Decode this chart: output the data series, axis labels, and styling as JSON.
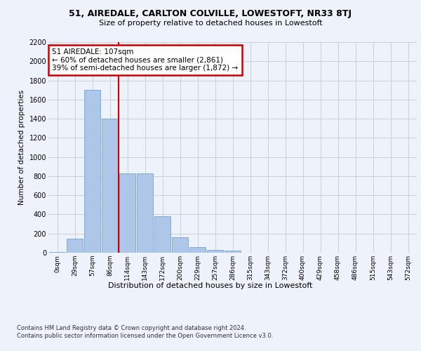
{
  "title_line1": "51, AIREDALE, CARLTON COLVILLE, LOWESTOFT, NR33 8TJ",
  "title_line2": "Size of property relative to detached houses in Lowestoft",
  "xlabel": "Distribution of detached houses by size in Lowestoft",
  "ylabel": "Number of detached properties",
  "bar_color": "#aec6e8",
  "bar_edge_color": "#5b9bd5",
  "grid_color": "#c8d0e0",
  "annotation_box_color": "#cc0000",
  "vline_color": "#cc0000",
  "annotation_text_line1": "51 AIREDALE: 107sqm",
  "annotation_text_line2": "← 60% of detached houses are smaller (2,861)",
  "annotation_text_line3": "39% of semi-detached houses are larger (1,872) →",
  "footnote1": "Contains HM Land Registry data © Crown copyright and database right 2024.",
  "footnote2": "Contains public sector information licensed under the Open Government Licence v3.0.",
  "categories": [
    "0sqm",
    "29sqm",
    "57sqm",
    "86sqm",
    "114sqm",
    "143sqm",
    "172sqm",
    "200sqm",
    "229sqm",
    "257sqm",
    "286sqm",
    "315sqm",
    "343sqm",
    "372sqm",
    "400sqm",
    "429sqm",
    "458sqm",
    "486sqm",
    "515sqm",
    "543sqm",
    "572sqm"
  ],
  "values": [
    10,
    145,
    1700,
    1400,
    830,
    830,
    380,
    160,
    60,
    30,
    25,
    0,
    0,
    0,
    0,
    0,
    0,
    0,
    0,
    0,
    0
  ],
  "ylim": [
    0,
    2200
  ],
  "yticks": [
    0,
    200,
    400,
    600,
    800,
    1000,
    1200,
    1400,
    1600,
    1800,
    2000,
    2200
  ],
  "vline_x": 3.5,
  "background_color": "#eef2fb",
  "plot_background_color": "#eef2fb"
}
